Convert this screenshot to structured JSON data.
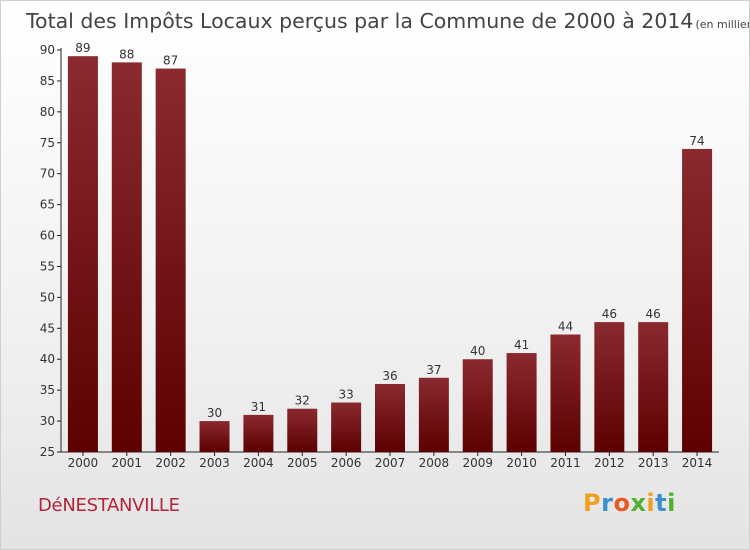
{
  "chart_data": {
    "type": "bar",
    "title": "Total des Impôts Locaux perçus par la Commune de 2000 à 2014",
    "subtitle": "(en milliers d'€)",
    "categories": [
      "2000",
      "2001",
      "2002",
      "2003",
      "2004",
      "2005",
      "2006",
      "2007",
      "2008",
      "2009",
      "2010",
      "2011",
      "2012",
      "2013",
      "2014"
    ],
    "values": [
      89,
      88,
      87,
      30,
      31,
      32,
      33,
      36,
      37,
      40,
      41,
      44,
      46,
      46,
      74
    ],
    "ylim": [
      25,
      90
    ],
    "yticks": [
      25,
      30,
      35,
      40,
      45,
      50,
      55,
      60,
      65,
      70,
      75,
      80,
      85,
      90
    ],
    "grid": false,
    "colors": {
      "bar_top": "#8a2a30",
      "bar_bottom": "#5c0000"
    }
  },
  "commune": "DéNESTANVILLE",
  "logo": {
    "letters": [
      "P",
      "r",
      "o",
      "x",
      "i",
      "t",
      "i"
    ],
    "colors": [
      "#f0a020",
      "#3a8fd0",
      "#e85a20",
      "#50b030",
      "#f0a020",
      "#3a8fd0",
      "#50b030"
    ]
  }
}
